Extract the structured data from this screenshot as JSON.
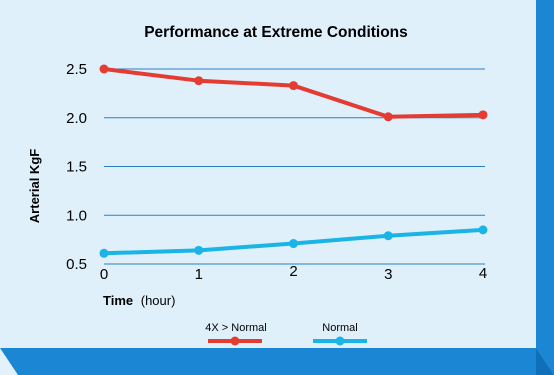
{
  "colors": {
    "panel": "#dff0fb",
    "frame": "#1a86d4",
    "frame_dark": "#0f6fb8",
    "grid": "#2a7fc4",
    "series_1": "#e43c33",
    "series_2": "#1ab4e6"
  },
  "chart_data": {
    "type": "line",
    "title": "Performance at Extreme Conditions",
    "xlabel": "Time",
    "xlabel_unit": "(hour)",
    "ylabel": "Arterial KgF",
    "x": [
      0,
      1,
      2,
      3,
      4
    ],
    "x_tick_labels": [
      "0",
      "1",
      "2",
      "3",
      "4"
    ],
    "y_tick_labels": [
      "0.5",
      "1.0",
      "1.5",
      "2.0",
      "2.5"
    ],
    "y_ticks": [
      0.5,
      1.0,
      1.5,
      2.0,
      2.5
    ],
    "xlim": [
      0,
      4
    ],
    "ylim": [
      0.5,
      2.5
    ],
    "grid": "horizontal",
    "legend_position": "bottom-center",
    "series": [
      {
        "name": "4X > Normal",
        "values": [
          2.5,
          2.38,
          2.33,
          2.01,
          2.03
        ]
      },
      {
        "name": "Normal",
        "values": [
          0.61,
          0.64,
          0.71,
          0.79,
          0.85
        ]
      }
    ]
  }
}
